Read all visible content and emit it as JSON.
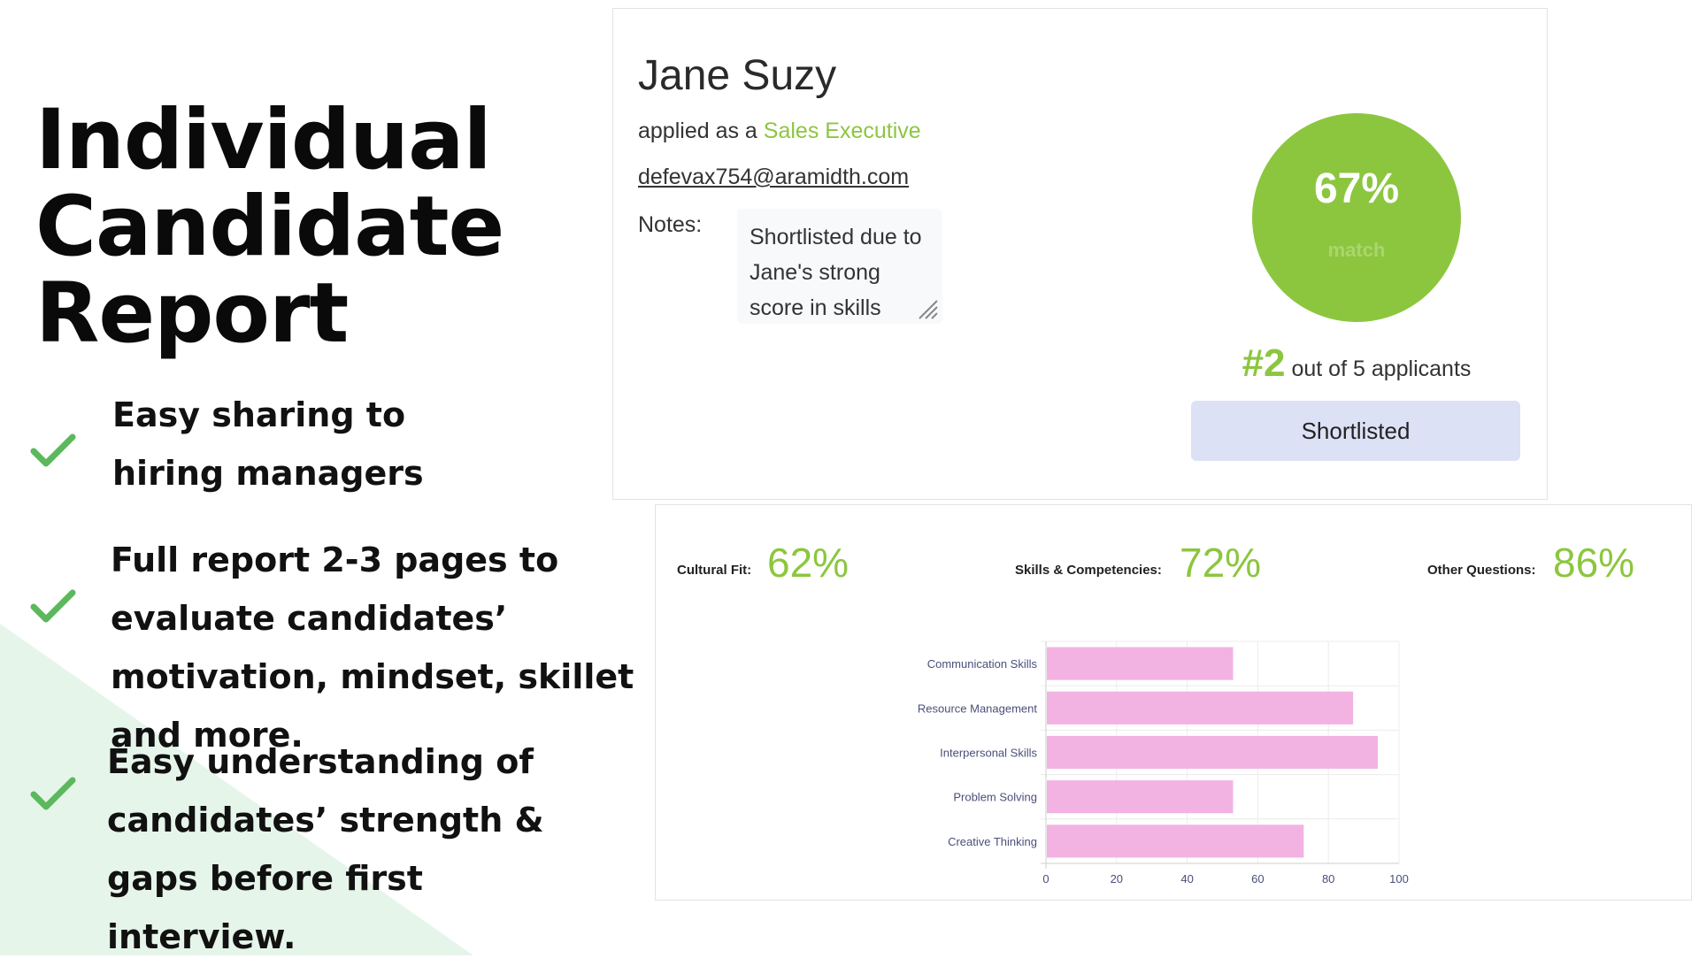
{
  "slide": {
    "title": "Individual\nCandidate\nReport",
    "benefits": [
      {
        "text": "Easy sharing to hiring managers"
      },
      {
        "text": "Full report 2-3 pages to evaluate candidates’ motivation, mindset, skillet and more."
      },
      {
        "text": "Easy understanding of candidates’ strength & gaps before first interview."
      }
    ],
    "check_icon": "check-icon",
    "colors": {
      "check": "#5cb85c",
      "background_triangle": "#e6f5ea"
    }
  },
  "candidate": {
    "name": "Jane Suzy",
    "applied_prefix": "applied as a ",
    "role": "Sales Executive",
    "email": "defevax754@aramidth.com",
    "notes_label": "Notes:",
    "notes": "Shortlisted due to Jane's strong score in skills",
    "match_percent": "67%",
    "match_label": "match",
    "rank": "#2",
    "rank_suffix": " out of 5 applicants",
    "status_button": "Shortlisted"
  },
  "scores": [
    {
      "label": "Cultural Fit:",
      "value": "62%"
    },
    {
      "label": "Skills & Competencies:",
      "value": "72%"
    },
    {
      "label": "Other Questions:",
      "value": "86%"
    }
  ],
  "colors": {
    "accent_green": "#8cc63f",
    "bar_pink": "#f2b3e3",
    "button_bg": "#dde1f6"
  },
  "chart_data": {
    "type": "bar",
    "orientation": "horizontal",
    "categories": [
      "Communication Skills",
      "Resource Management",
      "Interpersonal Skills",
      "Problem Solving",
      "Creative Thinking"
    ],
    "values": [
      53,
      87,
      94,
      53,
      73
    ],
    "xlim": [
      0,
      100
    ],
    "x_ticks": [
      0,
      20,
      40,
      60,
      80,
      100
    ],
    "grid": true,
    "title": "",
    "xlabel": "",
    "ylabel": ""
  }
}
